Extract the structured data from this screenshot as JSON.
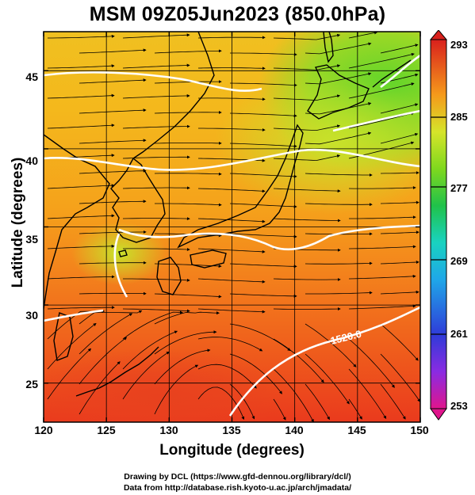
{
  "title": "MSM 09Z05Jun2023 (850.0hPa)",
  "xaxis": {
    "label": "Longitude (degrees)",
    "ticks": [
      "120",
      "125",
      "130",
      "135",
      "140",
      "145",
      "150"
    ],
    "range": [
      120,
      150
    ]
  },
  "yaxis": {
    "label": "Latitude  (degrees)",
    "ticks": [
      "25",
      "30",
      "35",
      "40",
      "45"
    ],
    "range": [
      22.5,
      47.5
    ]
  },
  "colorbar": {
    "labels": [
      "293",
      "285",
      "277",
      "269",
      "261",
      "253"
    ],
    "range": [
      253,
      293
    ],
    "colors": [
      "#e0158c",
      "#8a2be2",
      "#2f3bd8",
      "#1fa7e8",
      "#19d2c0",
      "#20c24a",
      "#7fd81e",
      "#d6e42a",
      "#f5d21d",
      "#f59a1b",
      "#f04a1f",
      "#d9201c"
    ]
  },
  "contours": {
    "label": "1520.0",
    "color": "#ffffff"
  },
  "map_style": {
    "coast_color": "#000000",
    "streamline_color": "#000000",
    "grid_color": "#000000"
  },
  "credits": {
    "line1": "Drawing by DCL (https://www.gfd-dennou.org/library/dcl/)",
    "line2": "Data from http://database.rish.kyoto-u.ac.jp/arch/jmadata/"
  }
}
